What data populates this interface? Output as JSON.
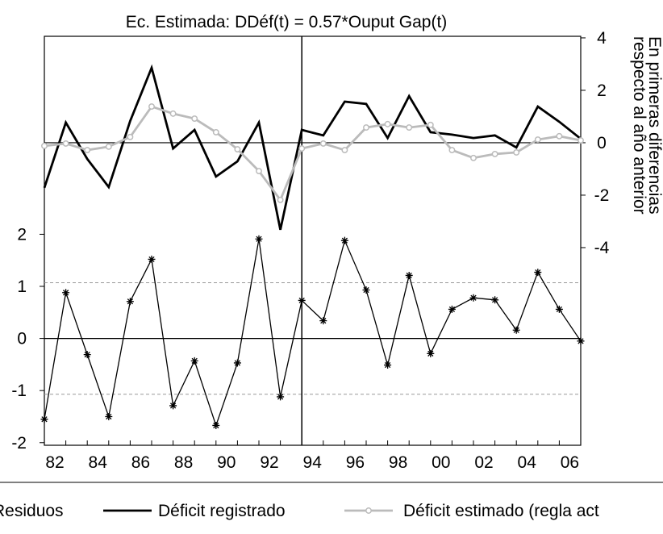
{
  "chart_data": {
    "type": "line",
    "title": "Ec. Estimada: DDéf(t) = 0.57*Ouput Gap(t)",
    "y2_label": [
      "En primeras diferencias",
      "respecto al año anterior"
    ],
    "categories": [
      "82",
      null,
      "84",
      null,
      "86",
      null,
      "88",
      null,
      "90",
      null,
      "92",
      null,
      "94",
      null,
      "96",
      null,
      "98",
      null,
      "00",
      null,
      "02",
      null,
      "04",
      null,
      "06",
      null
    ],
    "vertical_line": "94",
    "ylim": [
      -2.05,
      5.8
    ],
    "yticks": [
      -2,
      -1,
      0,
      1,
      2
    ],
    "y2lim": [
      -11.54,
      4.06
    ],
    "y2ticks": [
      -4,
      -2,
      0,
      2,
      4
    ],
    "residual_band": [
      -1.07,
      1.07
    ],
    "series": [
      {
        "name": "Residuos",
        "color": "#000000",
        "marker": "asterisk",
        "axis": "y",
        "values": [
          -1.55,
          0.88,
          -0.31,
          -1.5,
          0.71,
          1.52,
          -1.29,
          -0.43,
          -1.67,
          -0.47,
          1.91,
          -1.12,
          0.73,
          0.34,
          1.88,
          0.93,
          -0.51,
          1.21,
          -0.29,
          0.56,
          0.78,
          0.74,
          0.16,
          1.27,
          0.56,
          -0.05
        ]
      },
      {
        "name": "Déficit registrado",
        "color": "#000000",
        "marker": "none",
        "axis": "y2",
        "values": [
          -1.72,
          0.77,
          -0.62,
          -1.69,
          0.83,
          2.86,
          -0.22,
          0.49,
          -1.29,
          -0.71,
          0.77,
          -3.32,
          0.49,
          0.28,
          1.57,
          1.48,
          0.18,
          1.78,
          0.4,
          0.31,
          0.18,
          0.28,
          -0.18,
          1.38,
          0.8,
          0.15
        ]
      },
      {
        "name": "Déficit estimado (regla act",
        "color": "#bbbbbb",
        "marker": "circle",
        "axis": "y2",
        "values": [
          -0.12,
          -0.03,
          -0.28,
          -0.15,
          0.22,
          1.38,
          1.11,
          0.92,
          0.4,
          -0.25,
          -1.08,
          -2.18,
          -0.22,
          -0.03,
          -0.28,
          0.58,
          0.71,
          0.58,
          0.68,
          -0.28,
          -0.58,
          -0.43,
          -0.37,
          0.12,
          0.25,
          0.09
        ]
      }
    ]
  }
}
